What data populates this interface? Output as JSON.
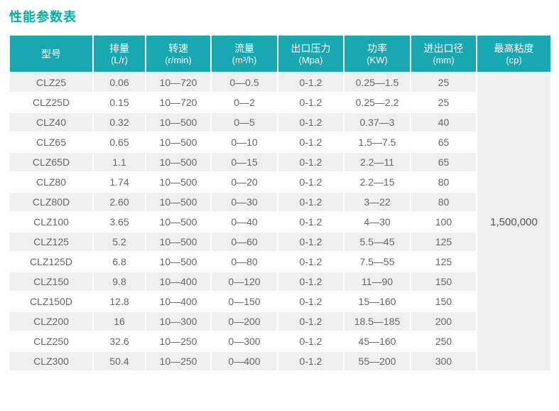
{
  "title": "性能参数表",
  "colors": {
    "title_text": "#00b0a0",
    "header_bg": "#18a8b2",
    "stripe_bg": "#efefef",
    "body_text": "#666666"
  },
  "table": {
    "columns": [
      {
        "name": "型号",
        "unit": ""
      },
      {
        "name": "排量",
        "unit": "(L/r)"
      },
      {
        "name": "转速",
        "unit": "(r/min)"
      },
      {
        "name": "流量",
        "unit": "(m³/h)"
      },
      {
        "name": "出口压力",
        "unit": "(Mpa)"
      },
      {
        "name": "功率",
        "unit": "(KW)"
      },
      {
        "name": "进出口径",
        "unit": "(mm)"
      },
      {
        "name": "最高粘度",
        "unit": "(cp)"
      }
    ],
    "rows": [
      [
        "CLZ25",
        "0.06",
        "10—720",
        "0—0.5",
        "0-1.2",
        "0.25—1.5",
        "25"
      ],
      [
        "CLZ25D",
        "0.15",
        "10—720",
        "0—2",
        "0-1.2",
        "0.25—2.2",
        "25"
      ],
      [
        "CLZ40",
        "0.32",
        "10—500",
        "0—5",
        "0-1.2",
        "0.37—3",
        "40"
      ],
      [
        "CLZ65",
        "0.65",
        "10—500",
        "0—10",
        "0-1.2",
        "1.5—7.5",
        "65"
      ],
      [
        "CLZ65D",
        "1.1",
        "10—500",
        "0—15",
        "0-1.2",
        "2.2—11",
        "65"
      ],
      [
        "CLZ80",
        "1.74",
        "10—500",
        "0—20",
        "0-1.2",
        "2.2—15",
        "80"
      ],
      [
        "CLZ80D",
        "2.60",
        "10—500",
        "0—30",
        "0-1.2",
        "3—22",
        "80"
      ],
      [
        "CLZ100",
        "3.65",
        "10—500",
        "0—40",
        "0-1.2",
        "4—30",
        "100"
      ],
      [
        "CLZ125",
        "5.2",
        "10—500",
        "0—60",
        "0-1.2",
        "5.5—45",
        "125"
      ],
      [
        "CLZ125D",
        "6.8",
        "10—500",
        "0—80",
        "0-1.2",
        "7.5—55",
        "125"
      ],
      [
        "CLZ150",
        "9.8",
        "10—400",
        "0—120",
        "0-1.2",
        "11—90",
        "150"
      ],
      [
        "CLZ150D",
        "12.8",
        "10—400",
        "0—150",
        "0-1.2",
        "15—160",
        "150"
      ],
      [
        "CLZ200",
        "16",
        "10—300",
        "0—200",
        "0-1.2",
        "18.5—185",
        "200"
      ],
      [
        "CLZ250",
        "32.6",
        "10—250",
        "0—300",
        "0-1.2",
        "45—160",
        "250"
      ],
      [
        "CLZ300",
        "50.4",
        "10—250",
        "0—400",
        "0-1.2",
        "55—200",
        "300"
      ]
    ],
    "max_viscosity": "1,500,000"
  }
}
